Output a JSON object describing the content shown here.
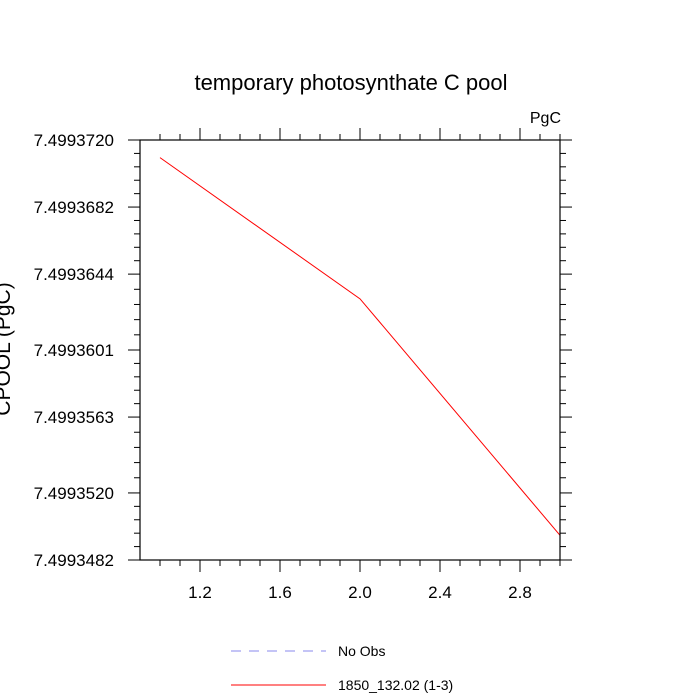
{
  "chart_data": {
    "type": "line",
    "title": "temporary photosynthate C pool",
    "units": "PgC",
    "ylabel": "CPOOL (PgC)",
    "xlabel": "",
    "xlim": [
      0.9,
      3.0
    ],
    "ylim": [
      7.4993482,
      7.499372
    ],
    "xticks": [
      1.2,
      1.6,
      2.0,
      2.4,
      2.8
    ],
    "xtick_labels": [
      "1.2",
      "1.6",
      "2.0",
      "2.4",
      "2.8"
    ],
    "yticks": [
      7.4993482,
      7.499352,
      7.4993563,
      7.4993601,
      7.4993644,
      7.4993682,
      7.499372
    ],
    "ytick_labels": [
      "7.4993482",
      "7.4993520",
      "7.4993563",
      "7.4993601",
      "7.4993644",
      "7.4993682",
      "7.4993720"
    ],
    "series": [
      {
        "name": "No Obs",
        "color": "#8a8aee",
        "dash": "dashed",
        "x": [],
        "y": []
      },
      {
        "name": "1850_132.02 (1-3)",
        "color": "#ff0000",
        "dash": "solid",
        "x": [
          1,
          2,
          3
        ],
        "y": [
          7.499371,
          7.499363,
          7.4993496
        ]
      }
    ],
    "legend_placement": "bottom-center",
    "grid": false
  }
}
